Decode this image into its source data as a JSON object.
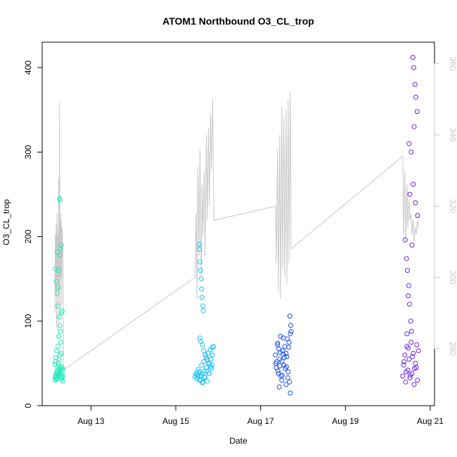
{
  "chart_data": {
    "type": "scatter",
    "title": "ATOM1 Northbound O3_CL_trop",
    "xlabel": "Date",
    "ylabel": "O3_CL_trop",
    "y2label": "",
    "grid": false,
    "legend": "none",
    "xlim": [
      11.85,
      21.1
    ],
    "ylim": [
      0,
      430
    ],
    "y2lim": [
      264,
      366
    ],
    "x_tick_labels": [
      "Aug 13",
      "Aug 15",
      "Aug 17",
      "Aug 19",
      "Aug 21"
    ],
    "x_tick_values": [
      13,
      15,
      17,
      19,
      21
    ],
    "y_ticks": [
      0,
      100,
      200,
      300,
      400
    ],
    "y2_ticks": [
      280,
      300,
      320,
      340,
      360
    ],
    "colors": {
      "axis": "#000000",
      "secondary_axis": "#c8c8c8",
      "secondary_line": "#c8c8c8"
    },
    "series": [
      {
        "color": "#1de9b6",
        "x": [
          12.15,
          12.16,
          12.17,
          12.18,
          12.18,
          12.19,
          12.2,
          12.2,
          12.21,
          12.22,
          12.22,
          12.23,
          12.24,
          12.24,
          12.25,
          12.26,
          12.26,
          12.27,
          12.28,
          12.28,
          12.29,
          12.3,
          12.3,
          12.31,
          12.32,
          12.32,
          12.33,
          12.34,
          12.16,
          12.18,
          12.2,
          12.22,
          12.24,
          12.26,
          12.28,
          12.3,
          12.21,
          12.23,
          12.25,
          12.27,
          12.29,
          12.31,
          12.26,
          12.27,
          12.24,
          12.22,
          12.19,
          12.17,
          12.15,
          12.16,
          12.28,
          12.3,
          12.33,
          12.32
        ],
        "y": [
          30,
          33,
          35,
          31,
          38,
          36,
          40,
          32,
          45,
          42,
          38,
          50,
          47,
          35,
          55,
          41,
          37,
          60,
          44,
          39,
          34,
          46,
          31,
          36,
          42,
          33,
          29,
          35,
          162,
          147,
          133,
          118,
          160,
          178,
          185,
          190,
          182,
          140,
          105,
          95,
          75,
          110,
          245,
          243,
          82,
          70,
          65,
          57,
          49,
          52,
          88,
          62,
          44,
          112
        ]
      },
      {
        "color": "#18c0f5",
        "x": [
          15.45,
          15.47,
          15.5,
          15.52,
          15.55,
          15.57,
          15.6,
          15.62,
          15.64,
          15.67,
          15.69,
          15.72,
          15.74,
          15.77,
          15.79,
          15.82,
          15.84,
          15.87,
          15.89,
          15.49,
          15.53,
          15.56,
          15.59,
          15.61,
          15.63,
          15.66,
          15.68,
          15.71,
          15.73,
          15.76,
          15.78,
          15.81,
          15.83,
          15.86,
          15.55,
          15.56,
          15.57,
          15.58,
          15.6,
          15.61,
          15.62,
          15.64,
          15.65,
          15.57,
          15.59,
          15.63,
          15.66,
          15.7,
          15.75,
          15.8,
          15.85
        ],
        "y": [
          34,
          37,
          32,
          36,
          40,
          30,
          35,
          38,
          28,
          41,
          33,
          45,
          29,
          50,
          38,
          55,
          44,
          60,
          70,
          39,
          43,
          31,
          36,
          48,
          27,
          52,
          34,
          57,
          41,
          62,
          38,
          66,
          46,
          69,
          191,
          185,
          170,
          160,
          150,
          138,
          128,
          118,
          112,
          80,
          76,
          72,
          65,
          60,
          55,
          50,
          48
        ]
      },
      {
        "color": "#1a4dea",
        "x": [
          17.35,
          17.37,
          17.4,
          17.42,
          17.45,
          17.47,
          17.5,
          17.52,
          17.55,
          17.57,
          17.6,
          17.62,
          17.65,
          17.67,
          17.7,
          17.72,
          17.38,
          17.43,
          17.48,
          17.53,
          17.58,
          17.63,
          17.68,
          17.71,
          17.36,
          17.41,
          17.46,
          17.51,
          17.56,
          17.61,
          17.66,
          17.69,
          17.44,
          17.54,
          17.64,
          17.4,
          17.5,
          17.6,
          17.7,
          17.45
        ],
        "y": [
          60,
          45,
          72,
          38,
          55,
          82,
          30,
          65,
          48,
          70,
          25,
          58,
          40,
          75,
          15,
          88,
          52,
          67,
          35,
          61,
          44,
          79,
          28,
          95,
          50,
          41,
          63,
          36,
          57,
          46,
          69,
          106,
          22,
          80,
          33,
          74,
          53,
          62,
          85,
          47
        ]
      },
      {
        "color": "#6a1fea",
        "x": [
          20.35,
          20.37,
          20.4,
          20.42,
          20.45,
          20.47,
          20.5,
          20.52,
          20.55,
          20.57,
          20.6,
          20.62,
          20.65,
          20.67,
          20.7,
          20.72,
          20.38,
          20.43,
          20.48,
          20.53,
          20.58,
          20.63,
          20.68,
          20.41,
          20.44,
          20.46,
          20.49,
          20.51,
          20.54,
          20.56,
          20.59,
          20.61,
          20.64,
          20.66,
          20.69,
          20.5,
          20.55,
          20.6,
          20.65,
          20.7,
          20.45,
          20.48,
          20.62,
          20.52,
          20.57
        ],
        "y": [
          35,
          48,
          60,
          28,
          70,
          42,
          55,
          33,
          75,
          38,
          62,
          25,
          50,
          45,
          30,
          65,
          52,
          40,
          68,
          36,
          58,
          44,
          72,
          196,
          174,
          160,
          142,
          120,
          100,
          88,
          412,
          400,
          380,
          365,
          348,
          310,
          300,
          262,
          240,
          225,
          85,
          130,
          330,
          250,
          190
        ]
      }
    ],
    "secondary_line": {
      "x": [
        12.15,
        12.16,
        12.17,
        12.18,
        12.19,
        12.2,
        12.21,
        12.22,
        12.23,
        12.24,
        12.25,
        12.26,
        12.27,
        12.28,
        12.29,
        12.3,
        12.31,
        12.32,
        12.33,
        12.34,
        12.35,
        15.45,
        15.48,
        15.5,
        15.52,
        15.55,
        15.57,
        15.6,
        15.62,
        15.64,
        15.67,
        15.69,
        15.72,
        15.74,
        15.77,
        15.79,
        15.82,
        15.84,
        15.87,
        15.9,
        17.35,
        17.37,
        17.4,
        17.42,
        17.45,
        17.47,
        17.5,
        17.52,
        17.55,
        17.57,
        17.6,
        17.62,
        17.65,
        17.67,
        17.7,
        17.72,
        20.35,
        20.37,
        20.4,
        20.42,
        20.45,
        20.47,
        20.5,
        20.52,
        20.55,
        20.57,
        20.6,
        20.62,
        20.65,
        20.67,
        20.7,
        20.72
      ],
      "y": [
        290,
        312,
        296,
        315,
        286,
        318,
        300,
        312,
        284,
        328,
        296,
        349,
        288,
        316,
        300,
        318,
        292,
        314,
        310,
        306,
        274,
        300,
        318,
        294,
        331,
        306,
        336,
        300,
        326,
        312,
        330,
        306,
        340,
        316,
        342,
        320,
        346,
        330,
        350,
        316,
        320,
        304,
        336,
        296,
        340,
        294,
        348,
        302,
        345,
        300,
        347,
        298,
        350,
        304,
        352,
        308,
        334,
        312,
        330,
        310,
        326,
        314,
        322,
        316,
        318,
        312,
        316,
        310,
        314,
        312,
        316,
        314
      ]
    }
  }
}
